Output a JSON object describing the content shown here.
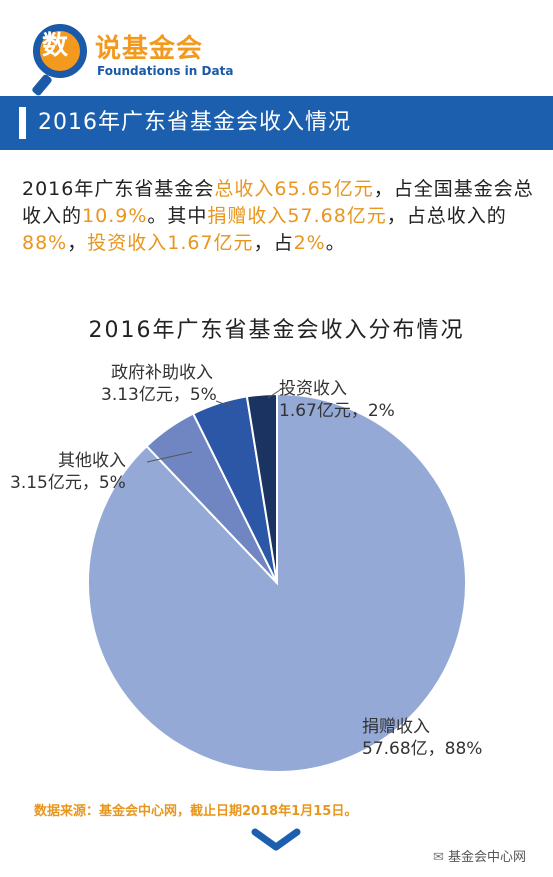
{
  "logo": {
    "glyph": "数",
    "cn_name": "说基金会",
    "en_name": "Foundations in Data"
  },
  "banner": {
    "title": "2016年广东省基金会收入情况"
  },
  "summary": {
    "t1": "2016年广东省基金会",
    "h1": "总收入65.65亿元",
    "t2": "，占全国基金会总收入的",
    "h2": "10.9%",
    "t3": "。其中",
    "h3": "捐赠收入57.68亿元",
    "t4": "，占总收入的",
    "h4": "88%",
    "t5": "，",
    "h5": "投资收入1.67亿元",
    "t6": "，占",
    "h6": "2%",
    "t7": "。"
  },
  "chart_data": {
    "type": "pie",
    "title": "2016年广东省基金会收入分布情况",
    "slices": [
      {
        "name": "捐赠收入",
        "value": 57.68,
        "percent": 88,
        "label_line1": "捐赠收入",
        "label_line2": "57.68亿，88%",
        "color": "#95a9d6"
      },
      {
        "name": "其他收入",
        "value": 3.15,
        "percent": 5,
        "label_line1": "其他收入",
        "label_line2": "3.15亿元，5%",
        "color": "#6f86c3"
      },
      {
        "name": "政府补助收入",
        "value": 3.13,
        "percent": 5,
        "label_line1": "政府补助收入",
        "label_line2": "3.13亿元，5%",
        "color": "#2c56a6"
      },
      {
        "name": "投资收入",
        "value": 1.67,
        "percent": 2,
        "label_line1": "投资收入",
        "label_line2": "1.67亿元，2%",
        "color": "#1b3361"
      }
    ]
  },
  "footer": {
    "source": "数据来源：基金会中心网，截止日期2018年1月15日。",
    "wechat": "基金会中心网"
  },
  "colors": {
    "brand_blue": "#1c5fae",
    "accent_orange": "#e8961d"
  }
}
